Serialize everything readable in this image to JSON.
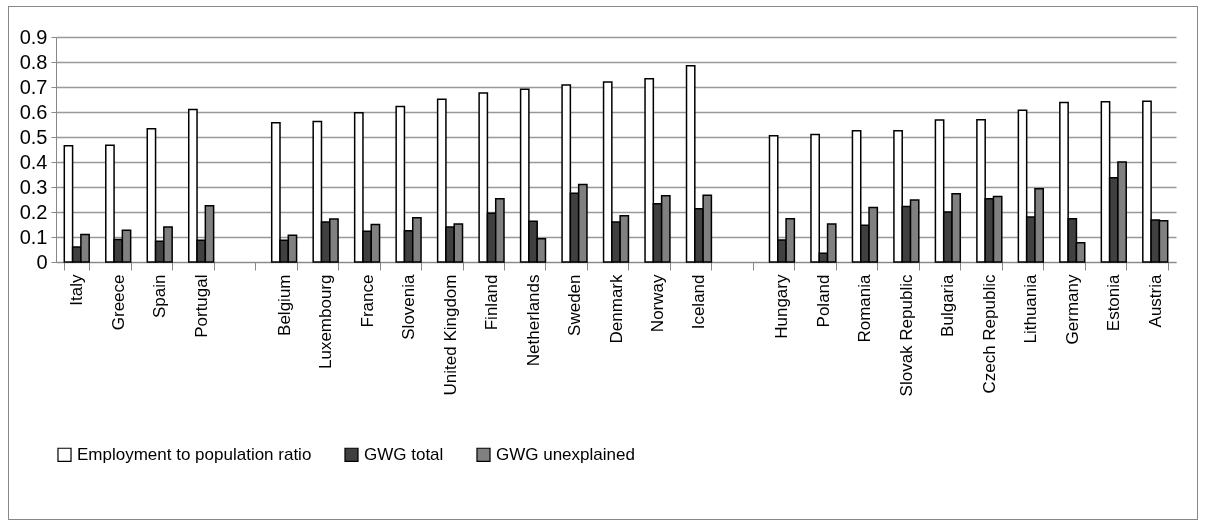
{
  "chart_data": {
    "type": "bar",
    "categories": [
      "Italy",
      "Greece",
      "Spain",
      "Portugal",
      null,
      "Belgium",
      "Luxembourg",
      "France",
      "Slovenia",
      "United Kingdom",
      "Finland",
      "Netherlands",
      "Sweden",
      "Denmark",
      "Norway",
      "Iceland",
      null,
      "Hungary",
      "Poland",
      "Romania",
      "Slovak Republic",
      "Bulgaria",
      "Czech Republic",
      "Lithuania",
      "Germany",
      "Estonia",
      "Austria"
    ],
    "series": [
      {
        "name": "Employment to population ratio",
        "color": "#ffffff",
        "values": [
          0.465,
          0.467,
          0.533,
          0.61,
          null,
          0.557,
          0.562,
          0.597,
          0.622,
          0.651,
          0.676,
          0.691,
          0.708,
          0.72,
          0.733,
          0.785,
          null,
          0.505,
          0.51,
          0.525,
          0.525,
          0.568,
          0.569,
          0.607,
          0.638,
          0.641,
          0.643
        ]
      },
      {
        "name": "GWG total",
        "color": "#404040",
        "values": [
          0.06,
          0.09,
          0.083,
          0.087,
          null,
          0.087,
          0.16,
          0.123,
          0.125,
          0.14,
          0.195,
          0.163,
          0.275,
          0.16,
          0.233,
          0.213,
          null,
          0.088,
          0.035,
          0.147,
          0.222,
          0.2,
          0.253,
          0.18,
          0.173,
          0.337,
          0.168
        ]
      },
      {
        "name": "GWG unexplained",
        "color": "#808080",
        "values": [
          0.11,
          0.127,
          0.14,
          0.225,
          null,
          0.107,
          0.172,
          0.15,
          0.177,
          0.152,
          0.253,
          0.093,
          0.31,
          0.185,
          0.265,
          0.267,
          null,
          0.173,
          0.152,
          0.218,
          0.248,
          0.273,
          0.262,
          0.293,
          0.077,
          0.4,
          0.165
        ]
      }
    ],
    "ylim": [
      0,
      0.9
    ],
    "yticks": [
      0,
      0.1,
      0.2,
      0.3,
      0.4,
      0.5,
      0.6,
      0.7,
      0.8,
      0.9
    ],
    "grid": "y",
    "legend": "bottom"
  }
}
